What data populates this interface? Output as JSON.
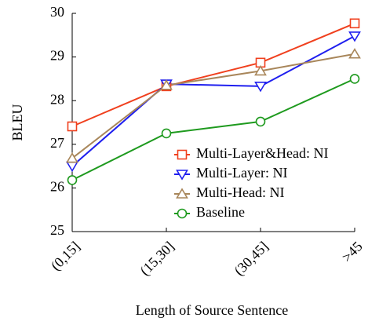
{
  "chart_data": {
    "type": "line",
    "xlabel": "Length of Source Sentence",
    "ylabel": "BLEU",
    "categories": [
      "(0,15]",
      "(15,30]",
      "(30,45]",
      ">45"
    ],
    "series": [
      {
        "name": "Multi-Layer&Head: NI",
        "color": "#f0401e",
        "marker": "square",
        "values": [
          27.41,
          28.33,
          28.87,
          29.77
        ]
      },
      {
        "name": "Multi-Layer: NI",
        "color": "#1f1fef",
        "marker": "triangle-down",
        "values": [
          26.5,
          28.38,
          28.33,
          29.48
        ]
      },
      {
        "name": "Multi-Head: NI",
        "color": "#a8865a",
        "marker": "triangle-up",
        "values": [
          26.68,
          28.35,
          28.68,
          29.07
        ]
      },
      {
        "name": "Baseline",
        "color": "#1e9a1e",
        "marker": "circle",
        "values": [
          26.18,
          27.25,
          27.52,
          28.5
        ]
      }
    ],
    "ylim": [
      25,
      30
    ],
    "yticks": [
      25,
      26,
      27,
      28,
      29,
      30
    ],
    "legend": "lower right"
  }
}
